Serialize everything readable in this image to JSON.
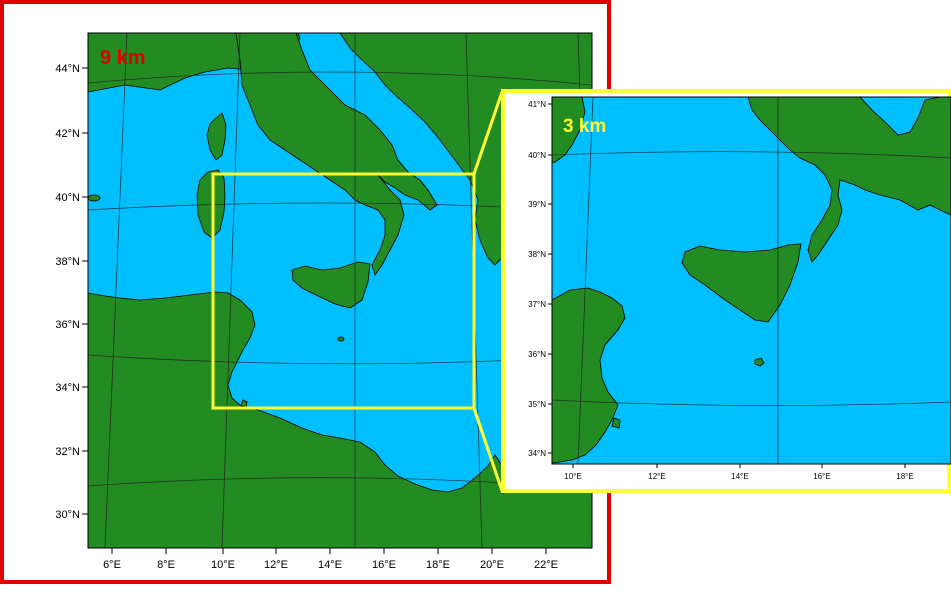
{
  "colors": {
    "sea": "#00bfff",
    "land": "#228b22",
    "outer_frame": "#e00000",
    "inset_frame": "#ffff33",
    "label_9km": "#e00000",
    "label_3km": "#ffff33"
  },
  "outer_map": {
    "label": "9 km",
    "lat_ticks": [
      "44°N",
      "42°N",
      "40°N",
      "38°N",
      "36°N",
      "34°N",
      "32°N",
      "30°N"
    ],
    "lon_ticks": [
      "6°E",
      "8°E",
      "10°E",
      "12°E",
      "14°E",
      "16°E",
      "18°E",
      "20°E",
      "22°E"
    ]
  },
  "inset_map": {
    "label": "3 km",
    "lat_ticks": [
      "41°N",
      "40°N",
      "39°N",
      "38°N",
      "37°N",
      "36°N",
      "35°N",
      "34°N"
    ],
    "lon_ticks": [
      "10°E",
      "12°E",
      "14°E",
      "16°E",
      "18°E"
    ]
  }
}
